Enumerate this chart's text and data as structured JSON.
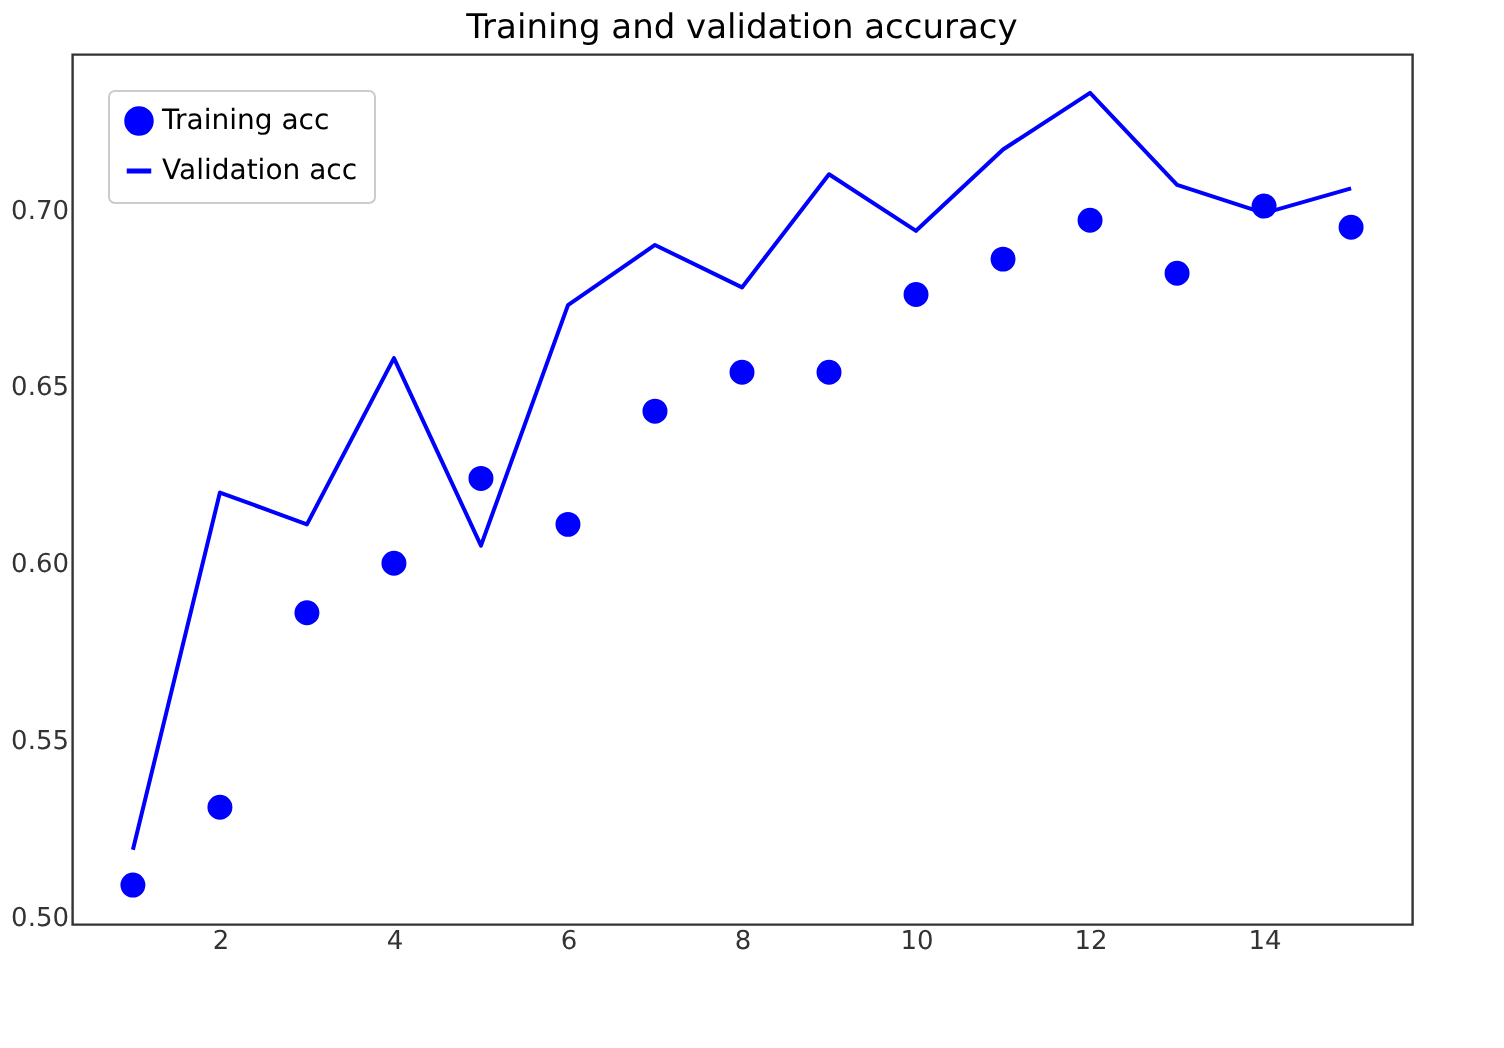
{
  "chart_data": {
    "type": "line",
    "title": "Training and validation accuracy",
    "x": [
      1,
      2,
      3,
      4,
      5,
      6,
      7,
      8,
      9,
      10,
      11,
      12,
      13,
      14,
      15
    ],
    "series": [
      {
        "name": "Training acc",
        "type": "scatter",
        "marker": "circle",
        "color": "#0000ff",
        "values": [
          0.509,
          0.531,
          0.586,
          0.6,
          0.624,
          0.611,
          0.643,
          0.654,
          0.654,
          0.676,
          0.686,
          0.697,
          0.682,
          0.701,
          0.695
        ]
      },
      {
        "name": "Validation acc",
        "marker": "none",
        "line_style": "solid",
        "color": "#0000ff",
        "values": [
          0.519,
          0.62,
          0.611,
          0.658,
          0.605,
          0.673,
          0.69,
          0.678,
          0.71,
          0.694,
          0.717,
          0.733,
          0.707,
          0.699,
          0.706
        ]
      }
    ],
    "xlim": [
      0.3,
      15.7
    ],
    "xticks": [
      2,
      4,
      6,
      8,
      10,
      12,
      14
    ],
    "ylim": [
      0.498,
      0.744
    ],
    "yticks": [
      {
        "value": 0.5,
        "label": "0.50"
      },
      {
        "value": 0.55,
        "label": "0.55"
      },
      {
        "value": 0.6,
        "label": "0.60"
      },
      {
        "value": 0.65,
        "label": "0.65"
      },
      {
        "value": 0.7,
        "label": "0.70"
      }
    ],
    "grid": false,
    "legend": "top left"
  }
}
